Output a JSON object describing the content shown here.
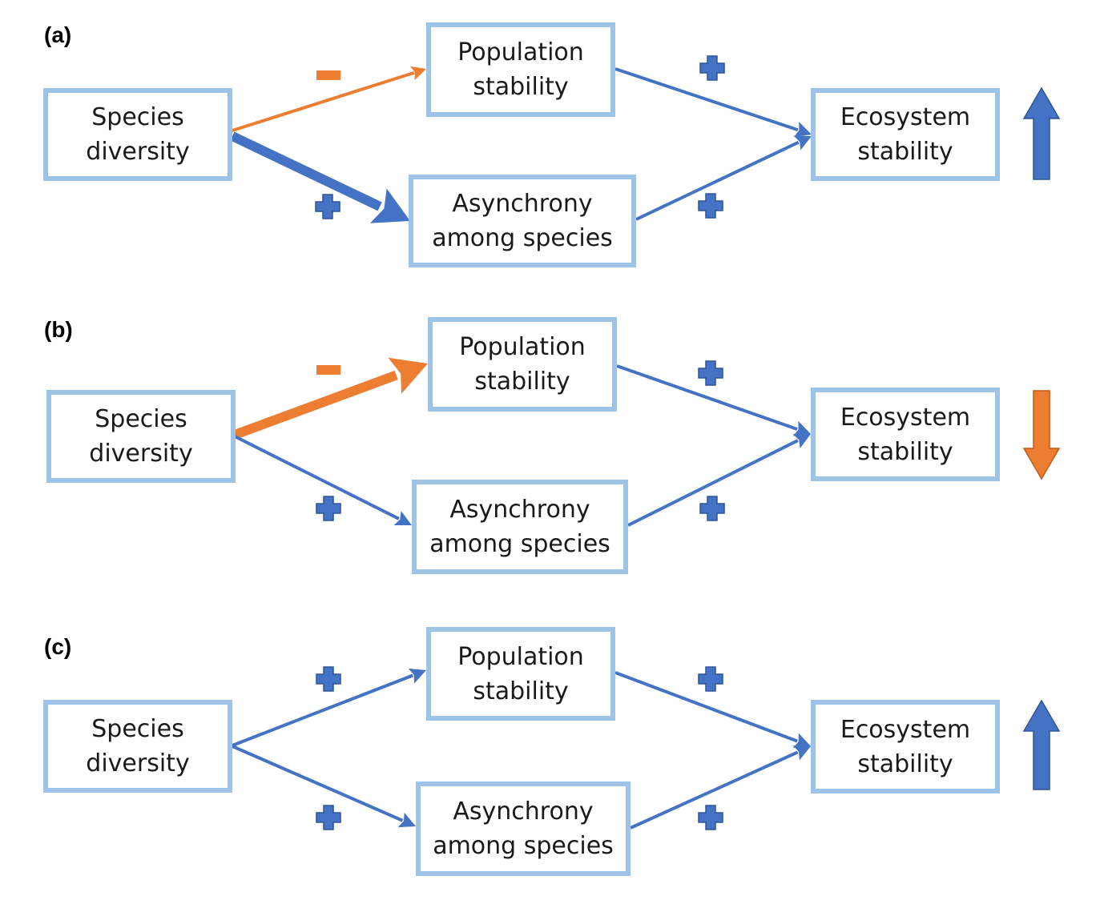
{
  "colors": {
    "positive": "#4472c4",
    "negative": "#ed7d31",
    "box_border": "#9dc3e6"
  },
  "panels": [
    {
      "label": "(a)",
      "nodes": {
        "diversity": [
          "Species",
          "diversity"
        ],
        "population": [
          "Population",
          "stability"
        ],
        "asynchrony": [
          "Asynchrony",
          "among species"
        ],
        "ecosystem": [
          "Ecosystem",
          "stability"
        ]
      },
      "edges": [
        {
          "from": "diversity",
          "to": "population",
          "sign": "-",
          "strength": "weak"
        },
        {
          "from": "diversity",
          "to": "asynchrony",
          "sign": "+",
          "strength": "strong"
        },
        {
          "from": "population",
          "to": "ecosystem",
          "sign": "+",
          "strength": "normal"
        },
        {
          "from": "asynchrony",
          "to": "ecosystem",
          "sign": "+",
          "strength": "normal"
        }
      ],
      "outcome": "up"
    },
    {
      "label": "(b)",
      "nodes": {
        "diversity": [
          "Species",
          "diversity"
        ],
        "population": [
          "Population",
          "stability"
        ],
        "asynchrony": [
          "Asynchrony",
          "among species"
        ],
        "ecosystem": [
          "Ecosystem",
          "stability"
        ]
      },
      "edges": [
        {
          "from": "diversity",
          "to": "population",
          "sign": "-",
          "strength": "strong"
        },
        {
          "from": "diversity",
          "to": "asynchrony",
          "sign": "+",
          "strength": "normal"
        },
        {
          "from": "population",
          "to": "ecosystem",
          "sign": "+",
          "strength": "normal"
        },
        {
          "from": "asynchrony",
          "to": "ecosystem",
          "sign": "+",
          "strength": "normal"
        }
      ],
      "outcome": "down"
    },
    {
      "label": "(c)",
      "nodes": {
        "diversity": [
          "Species",
          "diversity"
        ],
        "population": [
          "Population",
          "stability"
        ],
        "asynchrony": [
          "Asynchrony",
          "among species"
        ],
        "ecosystem": [
          "Ecosystem",
          "stability"
        ]
      },
      "edges": [
        {
          "from": "diversity",
          "to": "population",
          "sign": "+",
          "strength": "normal"
        },
        {
          "from": "diversity",
          "to": "asynchrony",
          "sign": "+",
          "strength": "normal"
        },
        {
          "from": "population",
          "to": "ecosystem",
          "sign": "+",
          "strength": "normal"
        },
        {
          "from": "asynchrony",
          "to": "ecosystem",
          "sign": "+",
          "strength": "normal"
        }
      ],
      "outcome": "up"
    }
  ]
}
